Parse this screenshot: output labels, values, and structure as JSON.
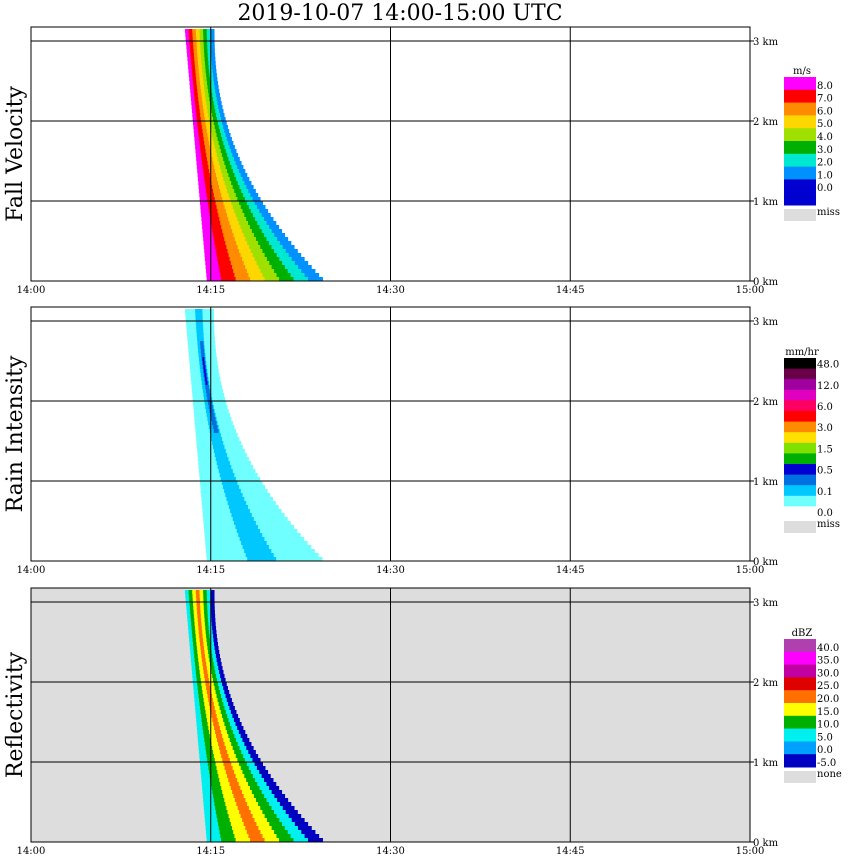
{
  "title": "2019-10-07   14:00-15:00 UTC",
  "chart_data": [
    {
      "type": "heatmap",
      "ylabel": "Fall Velocity",
      "unit": "m/s",
      "x_ticks": [
        "14:00",
        "14:15",
        "14:30",
        "14:45",
        "15:00"
      ],
      "y_ticks": [
        "0 km",
        "1 km",
        "2 km",
        "3 km"
      ],
      "xlim": [
        "14:00",
        "15:00"
      ],
      "ylim_km": [
        0,
        3.2
      ],
      "grid": true,
      "background": "#ffffff",
      "legend": [
        {
          "label": "8.0",
          "color": "#ff00ff"
        },
        {
          "label": "7.0",
          "color": "#ff0000"
        },
        {
          "label": "6.0",
          "color": "#ff8c00"
        },
        {
          "label": "5.0",
          "color": "#ffd700"
        },
        {
          "label": "4.0",
          "color": "#a0e000"
        },
        {
          "label": "3.0",
          "color": "#00b000"
        },
        {
          "label": "2.0",
          "color": "#00e8d0"
        },
        {
          "label": "1.0",
          "color": "#0090ff"
        },
        {
          "label": "0.0",
          "color": "#0000d0"
        },
        {
          "label": "",
          "color": "#0000d0"
        },
        {
          "label": "miss",
          "color": "#dddddd",
          "miss": true
        }
      ]
    },
    {
      "type": "heatmap",
      "ylabel": "Rain Intensity",
      "unit": "mm/hr",
      "x_ticks": [
        "14:00",
        "14:15",
        "14:30",
        "14:45",
        "15:00"
      ],
      "y_ticks": [
        "0 km",
        "1 km",
        "2 km",
        "3 km"
      ],
      "xlim": [
        "14:00",
        "15:00"
      ],
      "ylim_km": [
        0,
        3.2
      ],
      "grid": true,
      "background": "#ffffff",
      "legend": [
        {
          "label": "48.0",
          "color": "#000000"
        },
        {
          "label": "",
          "color": "#6a0048"
        },
        {
          "label": "12.0",
          "color": "#a000a0"
        },
        {
          "label": "",
          "color": "#e000c0"
        },
        {
          "label": "6.0",
          "color": "#ff0060"
        },
        {
          "label": "",
          "color": "#ff0000"
        },
        {
          "label": "3.0",
          "color": "#ff8c00"
        },
        {
          "label": "",
          "color": "#ffe000"
        },
        {
          "label": "1.5",
          "color": "#80e000"
        },
        {
          "label": "",
          "color": "#00b000"
        },
        {
          "label": "0.5",
          "color": "#0000d0"
        },
        {
          "label": "",
          "color": "#0070e0"
        },
        {
          "label": "0.1",
          "color": "#00c8ff"
        },
        {
          "label": "",
          "color": "#70ffff"
        },
        {
          "label": "0.0",
          "color": "#ffffff"
        },
        {
          "label": "miss",
          "color": "#dddddd",
          "miss": true
        }
      ]
    },
    {
      "type": "heatmap",
      "ylabel": "Reflectivity",
      "unit": "dBZ",
      "x_ticks": [
        "14:00",
        "14:15",
        "14:30",
        "14:45",
        "15:00"
      ],
      "y_ticks": [
        "0 km",
        "1 km",
        "2 km",
        "3 km"
      ],
      "xlim": [
        "14:00",
        "15:00"
      ],
      "ylim_km": [
        0,
        3.2
      ],
      "grid": true,
      "background": "#dddddd",
      "legend": [
        {
          "label": "40.0",
          "color": "#b040b0"
        },
        {
          "label": "35.0",
          "color": "#ff00ff"
        },
        {
          "label": "30.0",
          "color": "#c000a0"
        },
        {
          "label": "25.0",
          "color": "#e00000"
        },
        {
          "label": "20.0",
          "color": "#ff7000"
        },
        {
          "label": "15.0",
          "color": "#ffff00"
        },
        {
          "label": "10.0",
          "color": "#00b000"
        },
        {
          "label": "5.0",
          "color": "#00f0f0"
        },
        {
          "label": "0.0",
          "color": "#00a0ff"
        },
        {
          "label": "-5.0",
          "color": "#0000c0"
        },
        {
          "label": "none",
          "color": "#dddddd",
          "miss": true
        }
      ]
    }
  ]
}
